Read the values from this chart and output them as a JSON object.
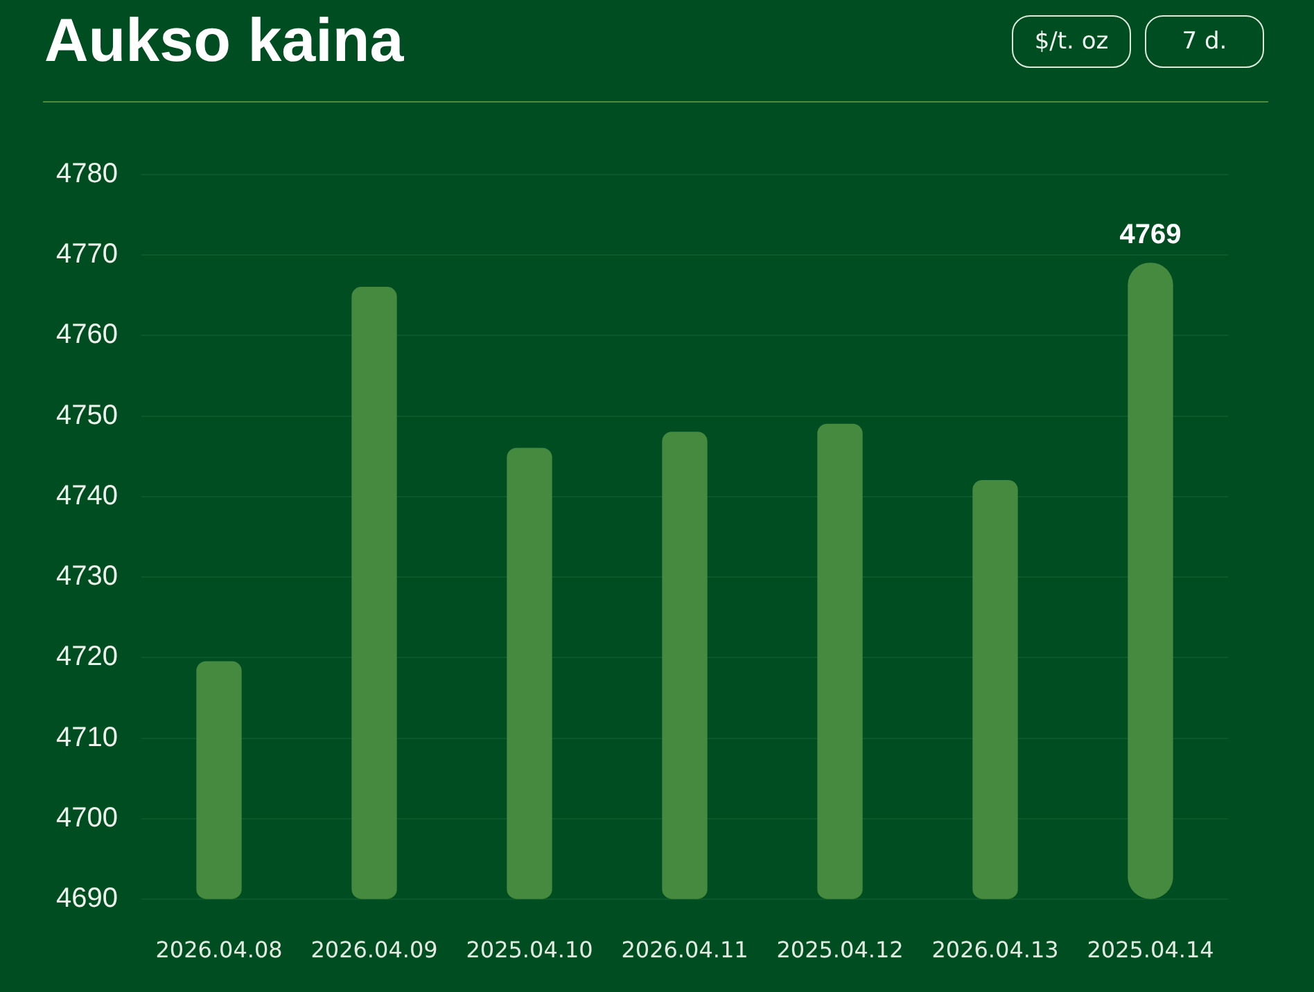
{
  "chart_data": {
    "type": "bar",
    "title": "Aukso kaina",
    "annotations": [
      "$/t. oz",
      "7 d."
    ],
    "categories": [
      "2026.04.08",
      "2026.04.09",
      "2025.04.10",
      "2026.04.11",
      "2025.04.12",
      "2026.04.13",
      "2025.04.14"
    ],
    "values": [
      4719.5,
      4766,
      4746,
      4748,
      4749,
      4742,
      4769
    ],
    "value_labels": [
      null,
      null,
      null,
      null,
      null,
      null,
      "4769"
    ],
    "color": "#458a3f",
    "ylim": [
      4690,
      4780
    ],
    "yticks": [
      4690,
      4700,
      4710,
      4720,
      4730,
      4740,
      4750,
      4760,
      4770,
      4780
    ],
    "grid": "y"
  }
}
